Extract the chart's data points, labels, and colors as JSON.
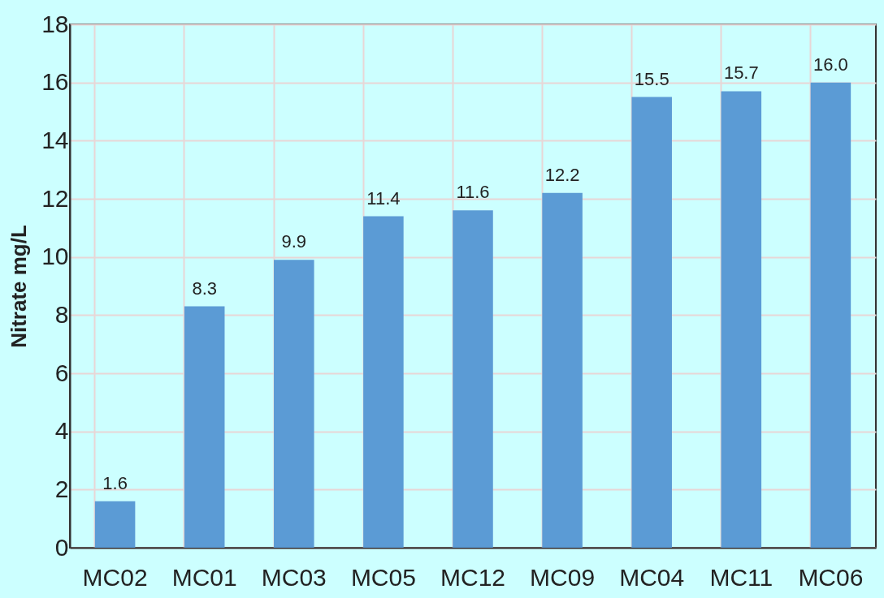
{
  "chart_data": {
    "type": "bar",
    "ylabel": "Nitrate mg/L",
    "categories": [
      "MC02",
      "MC01",
      "MC03",
      "MC05",
      "MC12",
      "MC09",
      "MC04",
      "MC11",
      "MC06"
    ],
    "values": [
      1.6,
      8.3,
      9.9,
      11.4,
      11.6,
      12.2,
      15.5,
      15.7,
      16.0
    ],
    "color": "#5b9bd5",
    "ylim": [
      0,
      18
    ],
    "yticks": [
      0,
      2,
      4,
      6,
      8,
      10,
      12,
      14,
      16,
      18
    ],
    "grid": true,
    "value_labels": [
      "1.6",
      "8.3",
      "9.9",
      "11.4",
      "11.6",
      "12.2",
      "15.5",
      "15.7",
      "16.0"
    ]
  }
}
